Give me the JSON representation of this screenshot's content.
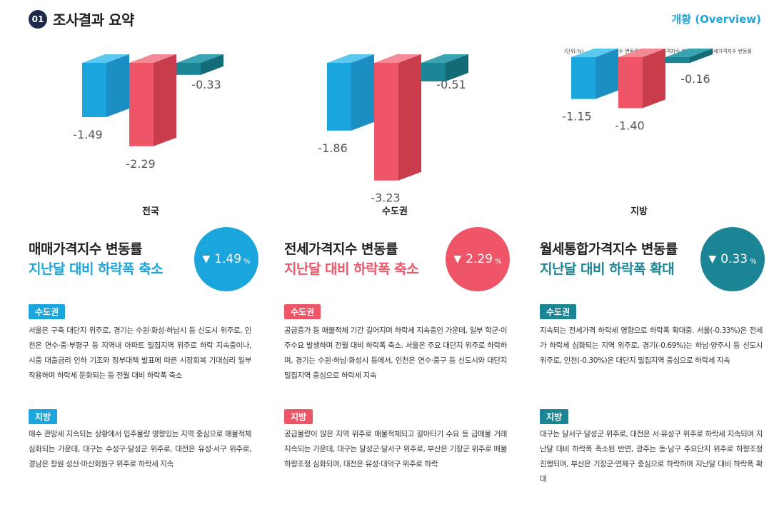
{
  "header": {
    "number": "01",
    "title": "조사결과 요약",
    "overview": "개황 (Overview)"
  },
  "legend": {
    "unit": "(단위:%)",
    "items": [
      {
        "label": "매매가격지수 변동률",
        "color": "#1aa6dd"
      },
      {
        "label": "전세가격지수 변동률",
        "color": "#ee5566"
      },
      {
        "label": "월세가격지수 변동률",
        "color": "#1b8595"
      }
    ]
  },
  "chart_data": {
    "type": "bar",
    "categories": [
      "전국",
      "수도권",
      "지방"
    ],
    "series": [
      {
        "name": "매매가격지수 변동률",
        "values": [
          -1.49,
          -1.86,
          -1.15
        ],
        "color": "#1aa6dd"
      },
      {
        "name": "전세가격지수 변동률",
        "values": [
          -2.29,
          -3.23,
          -1.4
        ],
        "color": "#ee5566"
      },
      {
        "name": "월세가격지수 변동률",
        "values": [
          -0.33,
          -0.51,
          -0.16
        ],
        "color": "#1b8595"
      }
    ],
    "value_labels": [
      [
        "-1.49",
        "-2.29",
        "-0.33"
      ],
      [
        "-1.86",
        "-3.23",
        "-0.51"
      ],
      [
        "-1.15",
        "-1.40",
        "-0.16"
      ]
    ],
    "ylabel": "(단위:%)"
  },
  "cards": [
    {
      "title": "매매가격지수 변동률",
      "subtitle": "지난달 대비 하락폭 축소",
      "color": "#1aa6dd",
      "arrow": "▼",
      "value": "1.49",
      "unit": "%",
      "sections": [
        {
          "tag": "수도권",
          "text": "서울은 구축 대단지 위주로, 경기는 수원·화성·하남시 등 신도시 위주로, 인천은 연수·중·부평구 등 지역내 아파트 밀집지역 위주로 하락 지속중이나, 시중 대출금리 인하 기조와 정부대책 발표에 따른 시장회복 기대심리 일부 작용하며 하락세 둔화되는 등 전월 대비 하락폭 축소"
        },
        {
          "tag": "지방",
          "text": "매수 관망세 지속되는 상황에서 입주물량 영향있는 지역 중심으로 매물적체 심화되는 가운데, 대구는 수성구·달성군 위주로, 대전은 유성·서구 위주로, 경남은 창원 성산·마산회원구 위주로 하락세 지속"
        }
      ]
    },
    {
      "title": "전세가격지수 변동률",
      "subtitle": "지난달 대비 하락폭 축소",
      "color": "#ee5566",
      "arrow": "▼",
      "value": "2.29",
      "unit": "%",
      "sections": [
        {
          "tag": "수도권",
          "text": "공급증가 등 매물적체 기간 길어지며 하락세 지속중인 가운데, 일부 학군·이주수요 발생하며 전월 대비 하락폭 축소. 서울은 주요 대단지 위주로 하락하며, 경기는 수원·하남·화성시 등에서, 인천은 연수·중구 등 신도시와 대단지 밀집지역 중심으로 하락세 지속"
        },
        {
          "tag": "지방",
          "text": "공급물량이 많은 지역 위주로 매물적체되고 갈아타기 수요 등 급매물 거래 지속되는 가운데, 대구는 달성군·달서구 위주로, 부산은 기장군 위주로 매물 하향조정 심화되며, 대전은 유성·대덕구 위주로 하락"
        }
      ]
    },
    {
      "title": "월세통합가격지수 변동률",
      "subtitle": "지난달 대비 하락폭 확대",
      "color": "#1b8595",
      "arrow": "▼",
      "value": "0.33",
      "unit": "%",
      "sections": [
        {
          "tag": "수도권",
          "text": "지속되는 전세가격 하락세 영향으로 하락폭 확대중. 서울(-0.33%)은 전세가 하락세 심화되는 지역 위주로, 경기(-0.69%)는 하남·양주시 등 신도시 위주로, 인천(-0.30%)은 대단지 밀집지역 중심으로 하락세 지속"
        },
        {
          "tag": "지방",
          "text": "대구는 달서구·달성군 위주로, 대전은 서·유성구 위주로 하락세 지속되며 지난달 대비 하락폭 축소된 반면, 광주는 동·남구 주요단지 위주로 하향조정 진행되며, 부산은 기장군·연제구 중심으로 하락하며 지난달 대비 하락폭 확대"
        }
      ]
    }
  ]
}
